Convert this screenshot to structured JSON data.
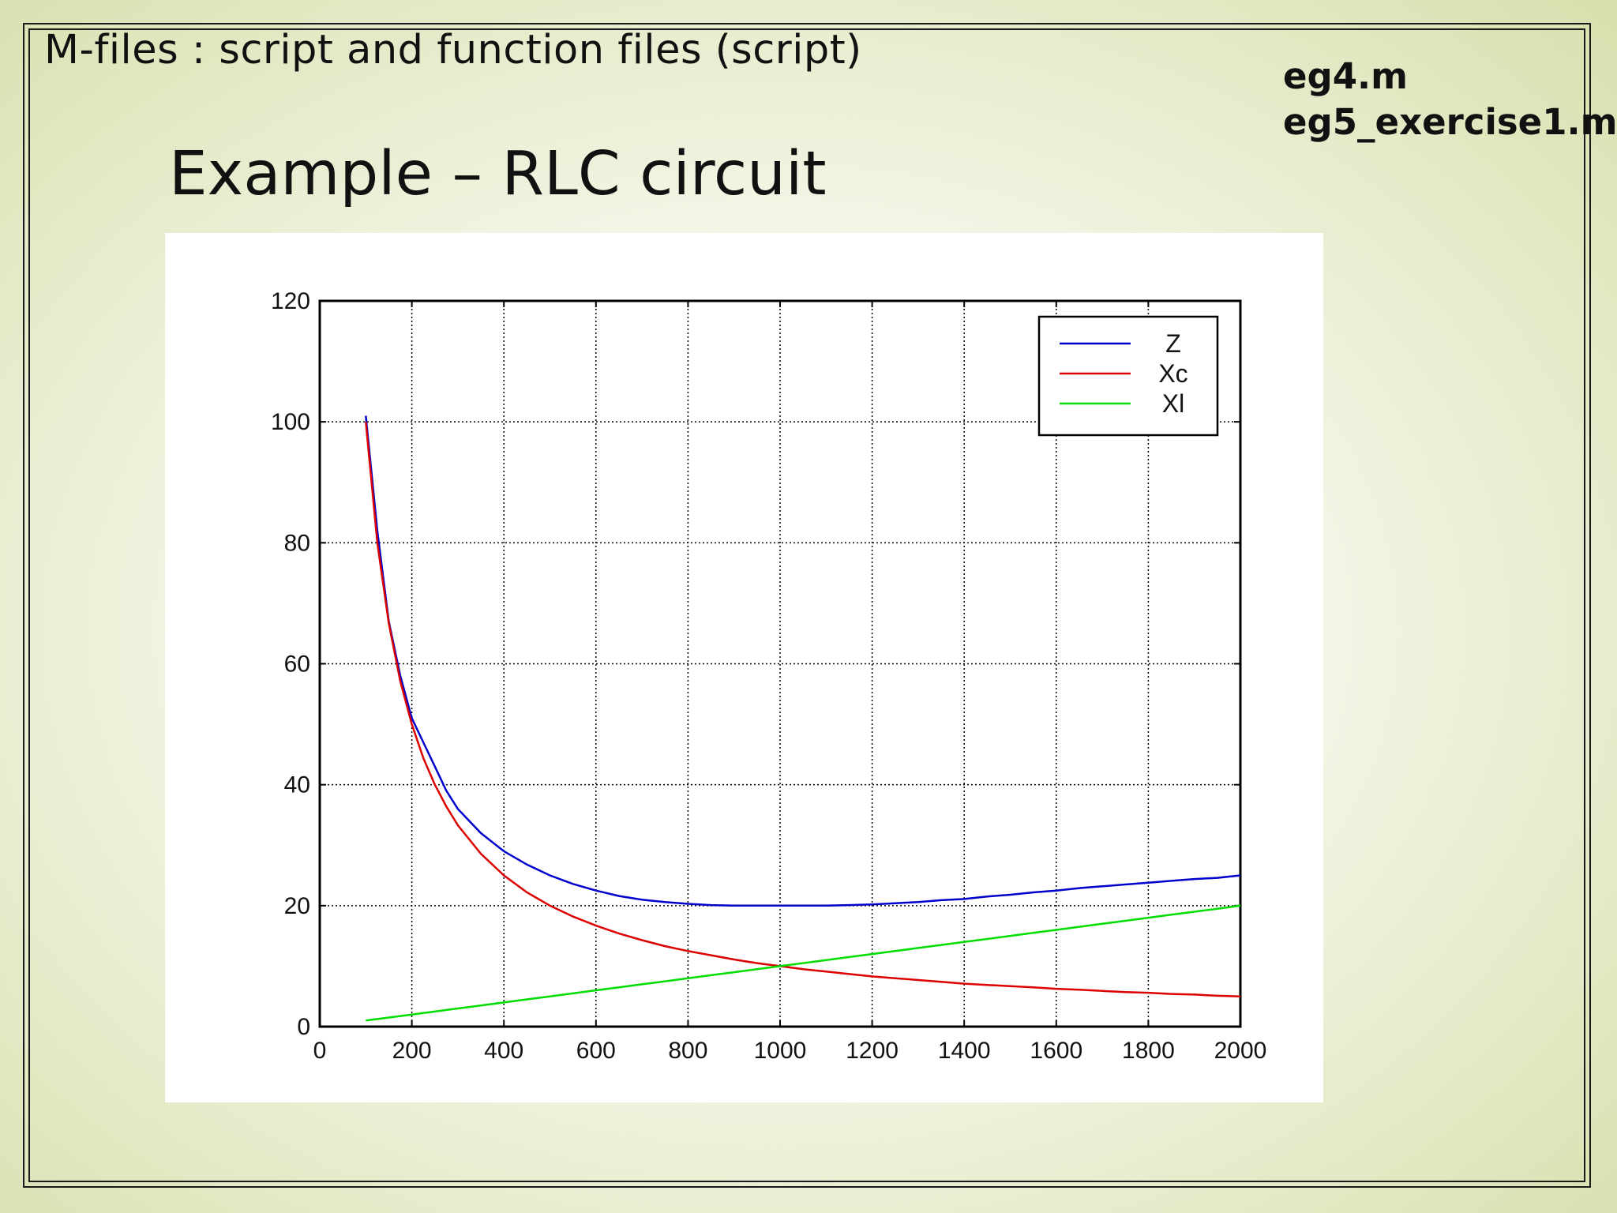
{
  "slide": {
    "header": "M-files : script and function files (script)",
    "files": [
      "eg4.m",
      "eg5_exercise1.m"
    ],
    "title": "Example – RLC circuit"
  },
  "chart_data": {
    "type": "line",
    "xlim": [
      0,
      2000
    ],
    "ylim": [
      0,
      120
    ],
    "xticks": [
      0,
      200,
      400,
      600,
      800,
      1000,
      1200,
      1400,
      1600,
      1800,
      2000
    ],
    "yticks": [
      0,
      20,
      40,
      60,
      80,
      100,
      120
    ],
    "grid": true,
    "legend_position": "top-right",
    "x": [
      100,
      125,
      150,
      175,
      200,
      225,
      250,
      275,
      300,
      350,
      400,
      450,
      500,
      550,
      600,
      650,
      700,
      750,
      800,
      850,
      900,
      950,
      1000,
      1050,
      1100,
      1150,
      1200,
      1250,
      1300,
      1350,
      1400,
      1450,
      1500,
      1550,
      1600,
      1650,
      1700,
      1750,
      1800,
      1850,
      1900,
      1950,
      2000
    ],
    "series": [
      {
        "name": "Z",
        "color": "#0000cc",
        "values": [
          101,
          82,
          67,
          58,
          51,
          47,
          43,
          39,
          36,
          32,
          29,
          26.8,
          25,
          23.6,
          22.5,
          21.6,
          21,
          20.6,
          20.3,
          20.1,
          20,
          20,
          20,
          20,
          20,
          20.1,
          20.2,
          20.4,
          20.6,
          20.9,
          21.1,
          21.5,
          21.8,
          22.2,
          22.5,
          22.9,
          23.2,
          23.5,
          23.8,
          24.1,
          24.4,
          24.6,
          25
        ]
      },
      {
        "name": "Xc",
        "color": "#dd0000",
        "values": [
          100,
          80,
          66.7,
          57.1,
          50,
          44.4,
          40,
          36.4,
          33.3,
          28.6,
          25,
          22.2,
          20,
          18.2,
          16.7,
          15.4,
          14.3,
          13.3,
          12.5,
          11.8,
          11.1,
          10.5,
          10,
          9.5,
          9.1,
          8.7,
          8.3,
          8,
          7.7,
          7.4,
          7.1,
          6.9,
          6.7,
          6.5,
          6.25,
          6.1,
          5.9,
          5.7,
          5.6,
          5.4,
          5.3,
          5.1,
          5
        ]
      },
      {
        "name": "Xl",
        "color": "#00dd00",
        "values": [
          1,
          1.25,
          1.5,
          1.75,
          2,
          2.25,
          2.5,
          2.75,
          3,
          3.5,
          4,
          4.5,
          5,
          5.5,
          6,
          6.5,
          7,
          7.5,
          8,
          8.5,
          9,
          9.5,
          10,
          10.5,
          11,
          11.5,
          12,
          12.5,
          13,
          13.5,
          14,
          14.5,
          15,
          15.5,
          16,
          16.5,
          17,
          17.5,
          18,
          18.5,
          19,
          19.5,
          20
        ]
      }
    ]
  }
}
